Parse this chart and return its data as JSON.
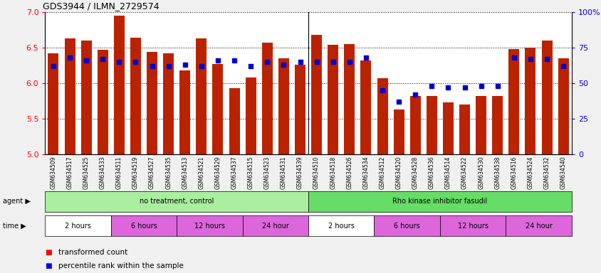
{
  "title": "GDS3944 / ILMN_2729574",
  "samples": [
    "GSM634509",
    "GSM634517",
    "GSM634525",
    "GSM634533",
    "GSM634511",
    "GSM634519",
    "GSM634527",
    "GSM634535",
    "GSM634513",
    "GSM634521",
    "GSM634529",
    "GSM634537",
    "GSM634515",
    "GSM634523",
    "GSM634531",
    "GSM634539",
    "GSM634510",
    "GSM634518",
    "GSM634526",
    "GSM634534",
    "GSM634512",
    "GSM634520",
    "GSM634528",
    "GSM634536",
    "GSM634514",
    "GSM634522",
    "GSM634530",
    "GSM634538",
    "GSM634516",
    "GSM634524",
    "GSM634532",
    "GSM634540"
  ],
  "transformed_count": [
    6.42,
    6.63,
    6.6,
    6.47,
    6.95,
    6.64,
    6.44,
    6.42,
    6.18,
    6.63,
    6.27,
    5.93,
    6.08,
    6.57,
    6.35,
    6.26,
    6.68,
    6.54,
    6.55,
    6.32,
    6.07,
    5.63,
    5.82,
    5.82,
    5.73,
    5.7,
    5.82,
    5.82,
    6.48,
    6.5,
    6.6,
    6.35
  ],
  "percentile_rank": [
    62,
    68,
    66,
    67,
    65,
    65,
    62,
    62,
    63,
    62,
    66,
    66,
    62,
    65,
    63,
    65,
    65,
    65,
    65,
    68,
    45,
    37,
    42,
    48,
    47,
    47,
    48,
    48,
    68,
    67,
    67,
    62
  ],
  "ylim_left": [
    5.0,
    7.0
  ],
  "ylim_right": [
    0,
    100
  ],
  "y_ticks_left": [
    5.0,
    5.5,
    6.0,
    6.5,
    7.0
  ],
  "y_ticks_right": [
    0,
    25,
    50,
    75,
    100
  ],
  "y_tick_labels_right": [
    "0",
    "25",
    "50",
    "75",
    "100%"
  ],
  "bar_color": "#bb2200",
  "dot_color": "#0000cc",
  "agent_groups": [
    {
      "label": "no treatment, control",
      "start": 0,
      "end": 16,
      "color": "#aaeea0"
    },
    {
      "label": "Rho kinase inhibitor fasudil",
      "start": 16,
      "end": 32,
      "color": "#66dd66"
    }
  ],
  "time_groups": [
    {
      "label": "2 hours",
      "start": 0,
      "end": 4,
      "color": "#ffffff"
    },
    {
      "label": "6 hours",
      "start": 4,
      "end": 8,
      "color": "#dd66dd"
    },
    {
      "label": "12 hours",
      "start": 8,
      "end": 12,
      "color": "#dd66dd"
    },
    {
      "label": "24 hour",
      "start": 12,
      "end": 16,
      "color": "#dd66dd"
    },
    {
      "label": "2 hours",
      "start": 16,
      "end": 20,
      "color": "#ffffff"
    },
    {
      "label": "6 hours",
      "start": 20,
      "end": 24,
      "color": "#dd66dd"
    },
    {
      "label": "12 hours",
      "start": 24,
      "end": 28,
      "color": "#dd66dd"
    },
    {
      "label": "24 hour",
      "start": 28,
      "end": 32,
      "color": "#dd66dd"
    }
  ],
  "bg_color": "#f0f0f0",
  "plot_bg": "#ffffff"
}
